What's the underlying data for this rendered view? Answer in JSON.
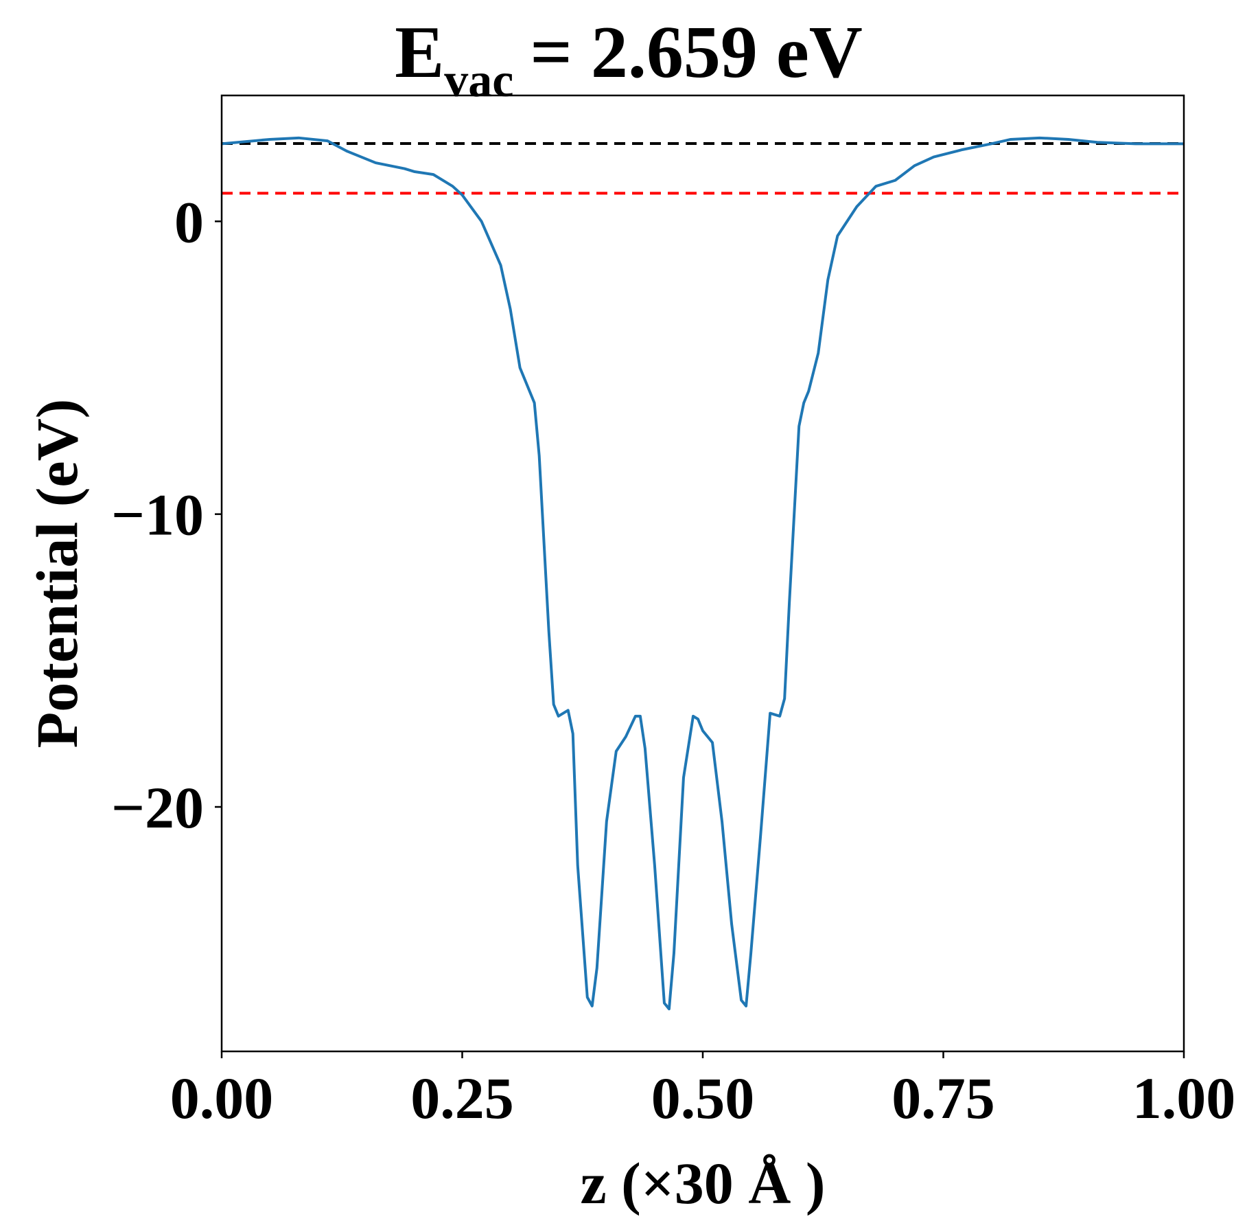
{
  "chart_data": {
    "type": "line",
    "title": {
      "main": "E",
      "sub": "vac",
      "rest": "= 2.659 eV"
    },
    "xlabel": "z (×30 Å )",
    "ylabel": "Potential (eV)",
    "xlim": [
      0,
      1
    ],
    "ylim": [
      -28.35,
      4.3
    ],
    "xticks": [
      {
        "value": 0,
        "label": "0.00"
      },
      {
        "value": 0.25,
        "label": "0.25"
      },
      {
        "value": 0.5,
        "label": "0.50"
      },
      {
        "value": 0.75,
        "label": "0.75"
      },
      {
        "value": 1,
        "label": "1.00"
      }
    ],
    "yticks": [
      {
        "value": 0,
        "label": "0"
      },
      {
        "value": -10,
        "label": "−10"
      },
      {
        "value": -20,
        "label": "−20"
      }
    ],
    "hlines": [
      {
        "value": 2.659,
        "color": "#000000"
      },
      {
        "value": 0.96,
        "color": "#ff0000"
      }
    ],
    "series": [
      {
        "color": "#1f77b4",
        "x": [
          0,
          0.05,
          0.08,
          0.11,
          0.13,
          0.16,
          0.19,
          0.2,
          0.22,
          0.24,
          0.25,
          0.27,
          0.29,
          0.3,
          0.31,
          0.32,
          0.325,
          0.33,
          0.34,
          0.345,
          0.35,
          0.36,
          0.365,
          0.37,
          0.38,
          0.385,
          0.39,
          0.4,
          0.41,
          0.42,
          0.43,
          0.435,
          0.44,
          0.45,
          0.46,
          0.465,
          0.47,
          0.48,
          0.49,
          0.495,
          0.5,
          0.51,
          0.52,
          0.53,
          0.54,
          0.545,
          0.55,
          0.56,
          0.57,
          0.58,
          0.585,
          0.59,
          0.6,
          0.605,
          0.61,
          0.62,
          0.63,
          0.64,
          0.66,
          0.68,
          0.7,
          0.72,
          0.74,
          0.77,
          0.8,
          0.82,
          0.85,
          0.88,
          0.91,
          0.95,
          1
        ],
        "values": [
          2.65,
          2.8,
          2.85,
          2.75,
          2.4,
          2.0,
          1.8,
          1.7,
          1.6,
          1.2,
          0.9,
          0.0,
          -1.5,
          -3,
          -5,
          -5.8,
          -6.2,
          -8,
          -14,
          -16.5,
          -16.9,
          -16.7,
          -17.5,
          -22,
          -26.5,
          -26.8,
          -25.5,
          -20.5,
          -18.1,
          -17.6,
          -16.9,
          -16.9,
          -18,
          -22,
          -26.7,
          -26.9,
          -25,
          -19,
          -16.9,
          -17.0,
          -17.4,
          -17.8,
          -20.5,
          -24,
          -26.6,
          -26.8,
          -25,
          -21,
          -16.8,
          -16.9,
          -16.3,
          -13,
          -7,
          -6.2,
          -5.8,
          -4.5,
          -2,
          -0.5,
          0.5,
          1.2,
          1.4,
          1.9,
          2.2,
          2.45,
          2.65,
          2.8,
          2.85,
          2.8,
          2.7,
          2.65,
          2.65
        ]
      }
    ]
  }
}
